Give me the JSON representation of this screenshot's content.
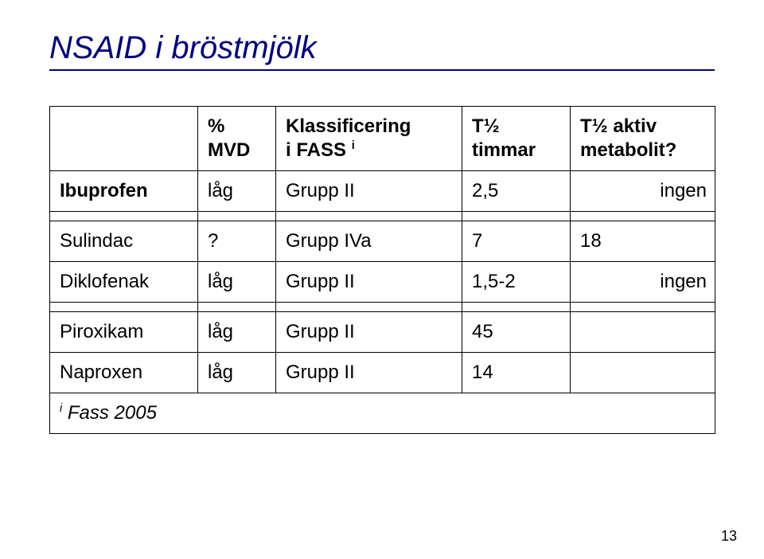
{
  "title": "NSAID i bröstmjölk",
  "columns": {
    "c1": "",
    "c2_line1": "%",
    "c2_line2": "MVD",
    "c3_line1": "Klassificering",
    "c3_line2_pre": "i FASS ",
    "c3_sup": "i",
    "c4_line1": "T½",
    "c4_line2": "timmar",
    "c5_line1": "T½ aktiv",
    "c5_line2": "metabolit?"
  },
  "rows": [
    {
      "drug": "Ibuprofen",
      "mvd": "låg",
      "klass": "Grupp II",
      "thalf": "2,5",
      "metab": "ingen",
      "bold_drug": true
    },
    {
      "drug": "Sulindac",
      "mvd": "?",
      "klass": "Grupp IVa",
      "thalf": "7",
      "metab": "18",
      "bold_drug": false,
      "gap_before": true
    },
    {
      "drug": "Diklofenak",
      "mvd": "låg",
      "klass": "Grupp II",
      "thalf": "1,5-2",
      "metab": "ingen",
      "bold_drug": false
    },
    {
      "drug": "Piroxikam",
      "mvd": "låg",
      "klass": "Grupp II",
      "thalf": "45",
      "metab": "",
      "bold_drug": false,
      "gap_before": true
    },
    {
      "drug": "Naproxen",
      "mvd": "låg",
      "klass": "Grupp II",
      "thalf": "14",
      "metab": "",
      "bold_drug": false
    }
  ],
  "footnote_sup": "i",
  "footnote_text": " Fass 2005",
  "page_number": "13",
  "colors": {
    "title": "#000080",
    "rule": "#000080",
    "border": "#000000",
    "bg": "#ffffff",
    "text": "#000000"
  },
  "fontsizes": {
    "title": 40,
    "cell": 24,
    "page": 18
  }
}
